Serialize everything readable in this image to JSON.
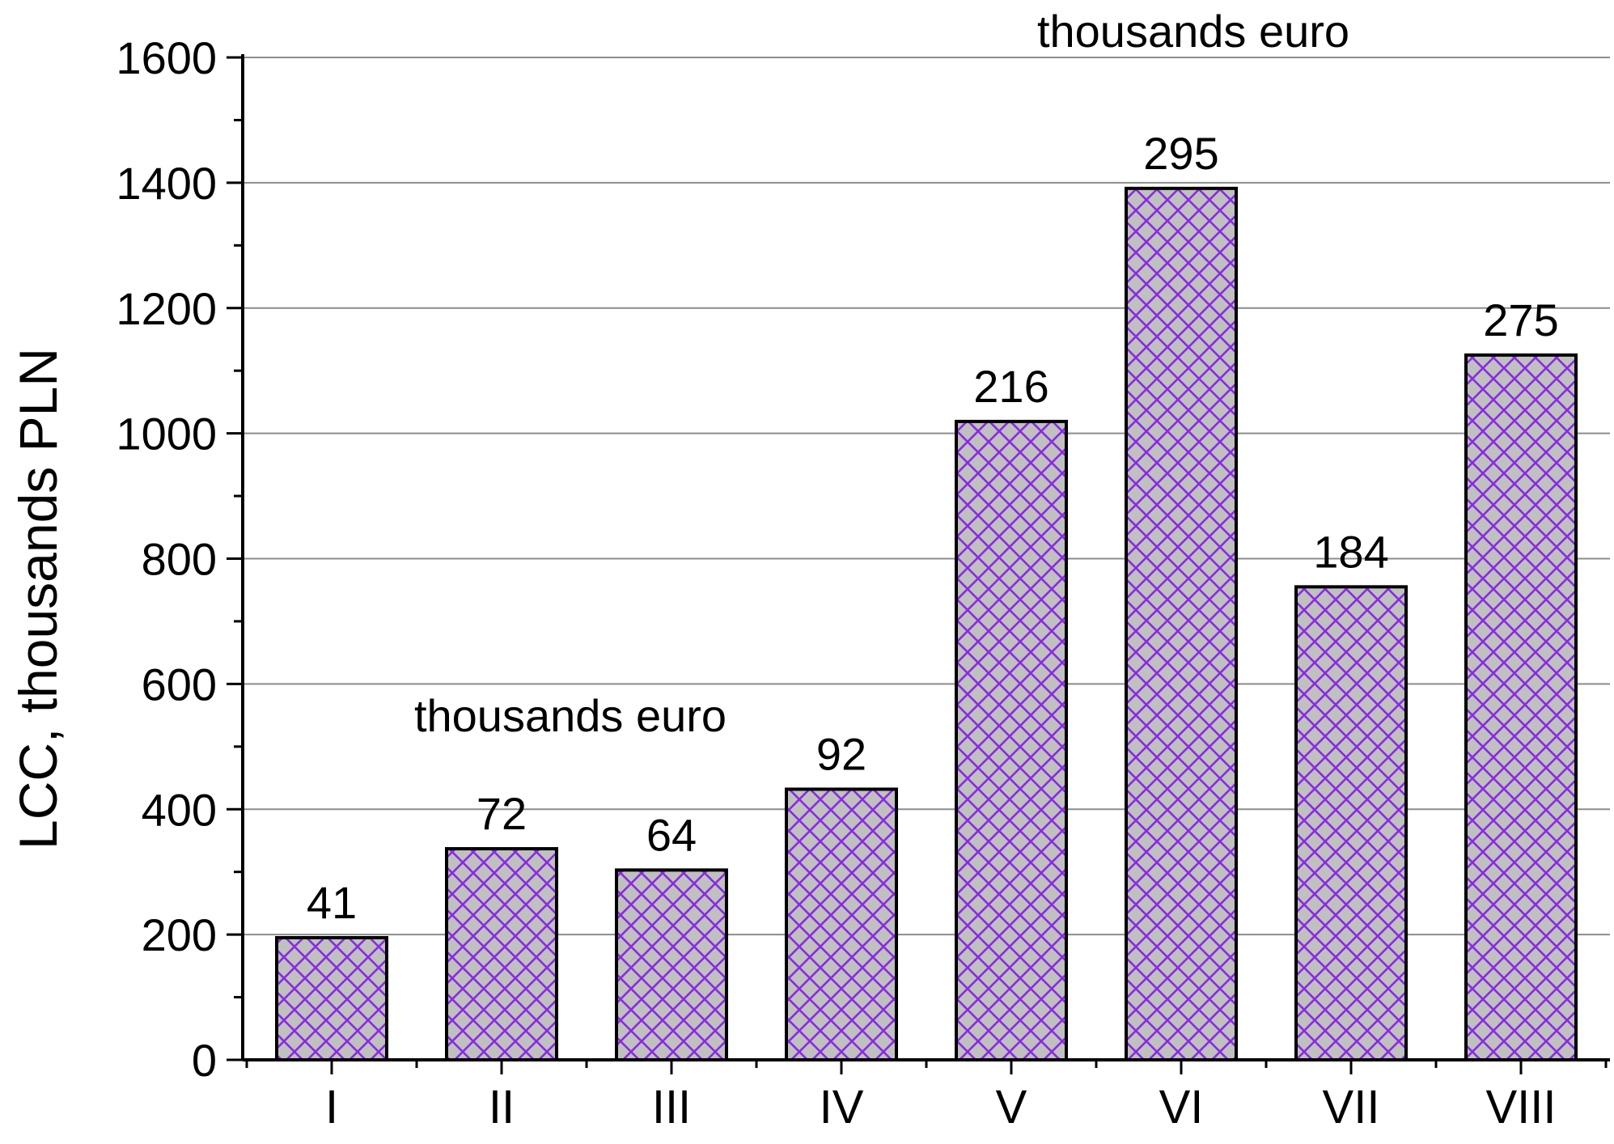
{
  "chart_data": {
    "type": "bar",
    "categories": [
      "I",
      "II",
      "III",
      "IV",
      "V",
      "VI",
      "VII",
      "VIII"
    ],
    "values": [
      195,
      337,
      303,
      432,
      1019,
      1391,
      755,
      1125
    ],
    "data_labels": [
      "41",
      "72",
      "64",
      "92",
      "216",
      "295",
      "184",
      "275"
    ],
    "ylabel": "LCC,    thousands PLN",
    "xlabel": "",
    "ylim": [
      0,
      1600
    ],
    "yticks": [
      0,
      200,
      400,
      600,
      800,
      1000,
      1200,
      1400,
      1600
    ],
    "grid": true,
    "annotations": [
      "thousands euro",
      "thousands euro"
    ],
    "colors": {
      "bar_fill": "#c0c0c0",
      "hatch": "#8a2be2",
      "bar_edge": "#000000",
      "grid": "#8c8c8c",
      "axis": "#000000"
    }
  }
}
